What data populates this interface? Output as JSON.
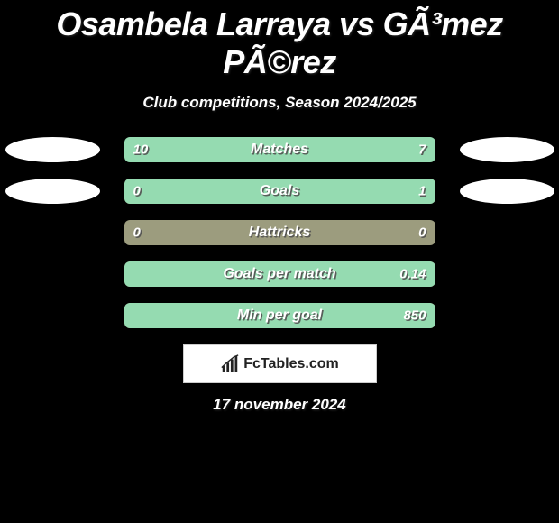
{
  "title": "Osambela Larraya vs GÃ³mez PÃ©rez",
  "subtitle": "Club competitions, Season 2024/2025",
  "date": "17 november 2024",
  "brand": "FcTables.com",
  "colors": {
    "bar_bg": "#9c9c7e",
    "bar_highlight": "#95dbb1",
    "ellipse": "#ffffff",
    "page_bg": "#000000",
    "text": "#ffffff"
  },
  "rows": [
    {
      "label": "Matches",
      "left_val": "10",
      "right_val": "7",
      "left_pct": 58.8,
      "right_pct": 41.2,
      "show_left_ellipse": true,
      "show_right_ellipse": true,
      "fill_side": "none",
      "highlight_full": true
    },
    {
      "label": "Goals",
      "left_val": "0",
      "right_val": "1",
      "left_pct": 0,
      "right_pct": 100,
      "show_left_ellipse": true,
      "show_right_ellipse": true,
      "fill_side": "right",
      "highlight_full": false
    },
    {
      "label": "Hattricks",
      "left_val": "0",
      "right_val": "0",
      "left_pct": 0,
      "right_pct": 0,
      "show_left_ellipse": false,
      "show_right_ellipse": false,
      "fill_side": "none",
      "highlight_full": false
    },
    {
      "label": "Goals per match",
      "left_val": "",
      "right_val": "0.14",
      "left_pct": 0,
      "right_pct": 100,
      "show_left_ellipse": false,
      "show_right_ellipse": false,
      "fill_side": "right",
      "highlight_full": false
    },
    {
      "label": "Min per goal",
      "left_val": "",
      "right_val": "850",
      "left_pct": 0,
      "right_pct": 100,
      "show_left_ellipse": false,
      "show_right_ellipse": false,
      "fill_side": "right",
      "highlight_full": false
    }
  ]
}
